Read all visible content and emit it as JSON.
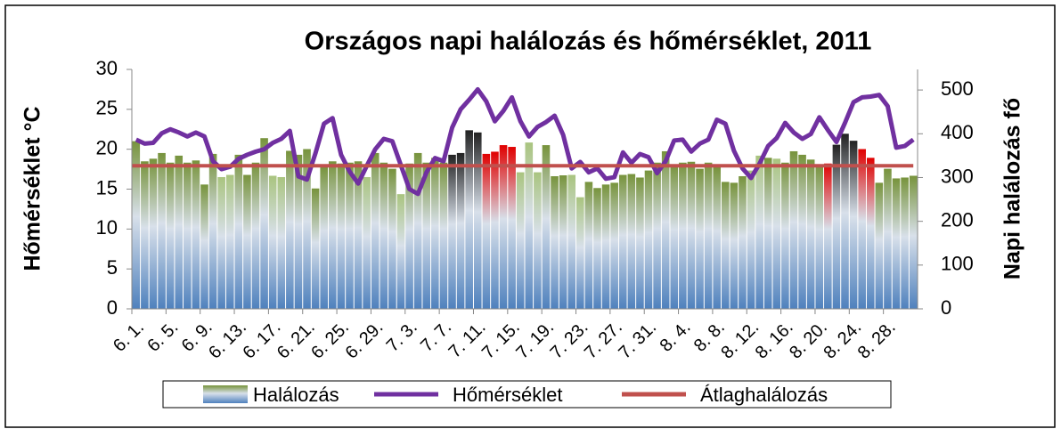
{
  "chart_data": {
    "type": "bar-line",
    "title": "Országos napi halálozás és hőmérséklet, 2011",
    "ylabel": "Hőmérséklet °C",
    "y2label": "Napi halálozás fő",
    "categories": [
      "6. 1.",
      null,
      null,
      null,
      "6. 5.",
      null,
      null,
      null,
      "6. 9.",
      null,
      null,
      null,
      "6. 13.",
      null,
      null,
      null,
      "6. 17.",
      null,
      null,
      null,
      "6. 21.",
      null,
      null,
      null,
      "6. 25.",
      null,
      null,
      null,
      "6. 29.",
      null,
      null,
      null,
      "7. 3.",
      null,
      null,
      null,
      "7. 7.",
      null,
      null,
      null,
      "7. 11.",
      null,
      null,
      null,
      "7. 15.",
      null,
      null,
      null,
      "7. 19.",
      null,
      null,
      null,
      "7. 23.",
      null,
      null,
      null,
      "7. 27.",
      null,
      null,
      null,
      "7. 31.",
      null,
      null,
      null,
      "8. 4.",
      null,
      null,
      null,
      "8. 8.",
      null,
      null,
      null,
      "8. 12.",
      null,
      null,
      null,
      "8. 16.",
      null,
      null,
      null,
      "8. 20.",
      null,
      null,
      null,
      "8. 24.",
      null,
      null,
      null,
      "8. 28.",
      null,
      null,
      null
    ],
    "series": [
      {
        "name": "Halálozás",
        "kind": "bar",
        "axis": "y2",
        "color": "#77933c",
        "values": [
          383,
          337,
          343,
          356,
          334,
          350,
          334,
          339,
          284,
          354,
          301,
          306,
          352,
          306,
          334,
          390,
          304,
          301,
          361,
          352,
          365,
          275,
          325,
          337,
          332,
          334,
          337,
          301,
          356,
          334,
          320,
          262,
          332,
          356,
          334,
          345,
          334,
          352,
          356,
          408,
          403,
          354,
          359,
          374,
          370,
          312,
          380,
          312,
          374,
          303,
          305,
          306,
          255,
          290,
          276,
          284,
          288,
          306,
          308,
          300,
          316,
          334,
          360,
          330,
          334,
          336,
          320,
          334,
          324,
          290,
          288,
          303,
          316,
          350,
          345,
          343,
          334,
          360,
          352,
          341,
          330,
          332,
          375,
          400,
          384,
          365,
          345,
          288,
          320,
          298,
          300,
          304
        ],
        "colors": [
          "#77933c",
          "#77933c",
          "#77933c",
          "#77933c",
          "#77933c",
          "#77933c",
          "#77933c",
          "#77933c",
          "#77933c",
          "#77933c",
          "#a9c47f",
          "#a9c47f",
          "#77933c",
          "#77933c",
          "#77933c",
          "#77933c",
          "#a9c47f",
          "#a9c47f",
          "#77933c",
          "#77933c",
          "#77933c",
          "#77933c",
          "#77933c",
          "#77933c",
          "#77933c",
          "#77933c",
          "#77933c",
          "#a9c47f",
          "#77933c",
          "#77933c",
          "#77933c",
          "#a9c47f",
          "#77933c",
          "#77933c",
          "#77933c",
          "#77933c",
          "#77933c",
          "#222222",
          "#222222",
          "#222222",
          "#222222",
          "#e00000",
          "#e00000",
          "#e00000",
          "#e00000",
          "#a9c47f",
          "#a9c47f",
          "#a9c47f",
          "#77933c",
          "#77933c",
          "#77933c",
          "#a9c47f",
          "#a9c47f",
          "#77933c",
          "#77933c",
          "#77933c",
          "#77933c",
          "#77933c",
          "#77933c",
          "#77933c",
          "#77933c",
          "#77933c",
          "#77933c",
          "#77933c",
          "#77933c",
          "#77933c",
          "#77933c",
          "#77933c",
          "#77933c",
          "#77933c",
          "#77933c",
          "#77933c",
          "#a9c47f",
          "#a9c47f",
          "#77933c",
          "#a9c47f",
          "#77933c",
          "#77933c",
          "#77933c",
          "#77933c",
          "#77933c",
          "#e00000",
          "#222222",
          "#222222",
          "#222222",
          "#e00000",
          "#e00000",
          "#77933c",
          "#77933c",
          "#77933c",
          "#77933c",
          "#77933c"
        ]
      },
      {
        "name": "Hőmérséklet",
        "kind": "line",
        "axis": "y",
        "color": "#7030a0",
        "values": [
          21.2,
          20.7,
          20.8,
          22.0,
          22.5,
          22.1,
          21.6,
          22.1,
          21.6,
          18.5,
          17.5,
          17.8,
          18.8,
          19.3,
          19.7,
          20.0,
          20.8,
          21.3,
          22.3,
          16.6,
          16.2,
          19.5,
          23.2,
          23.9,
          19.3,
          17.2,
          15.7,
          17.9,
          20.0,
          21.3,
          21.0,
          18.0,
          15.0,
          14.4,
          17.1,
          18.9,
          18.5,
          22.7,
          25.0,
          26.2,
          27.5,
          26.0,
          23.5,
          24.8,
          26.5,
          23.5,
          21.6,
          22.8,
          23.4,
          24.2,
          21.8,
          17.6,
          18.4,
          17.1,
          17.6,
          16.3,
          16.5,
          19.6,
          18.3,
          19.4,
          19.0,
          17.0,
          18.5,
          21.1,
          21.2,
          19.7,
          20.7,
          21.2,
          23.7,
          23.2,
          19.8,
          17.6,
          16.4,
          18.2,
          20.4,
          21.4,
          23.3,
          22.1,
          21.3,
          21.9,
          24.0,
          22.4,
          20.9,
          23.3,
          25.9,
          26.5,
          26.6,
          26.8,
          25.4,
          20.2,
          20.4,
          21.2
        ]
      },
      {
        "name": "Átlaghalálozás",
        "kind": "hline",
        "axis": "y2",
        "color": "#c0504d",
        "value": 327
      }
    ],
    "ylim": [
      0,
      30
    ],
    "yticks": [
      0,
      5,
      10,
      15,
      20,
      25,
      30
    ],
    "y2lim": [
      0,
      547
    ],
    "y2ticks": [
      0,
      100,
      200,
      300,
      400,
      500
    ],
    "grid": false,
    "legend": "bottom"
  }
}
